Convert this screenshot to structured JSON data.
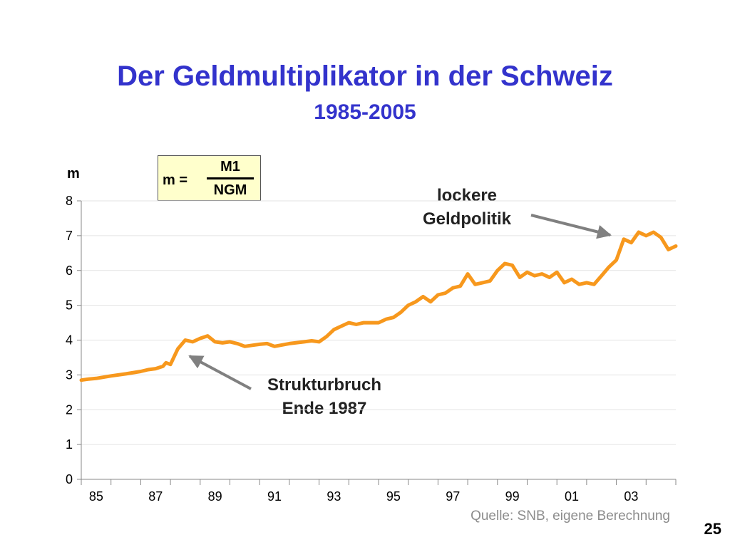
{
  "slide": {
    "title": "Der Geldmultiplikator in der Schweiz",
    "subtitle": "1985-2005",
    "formula": {
      "lhs": "m =",
      "numerator": "M1",
      "denominator": "NGM"
    },
    "annotations": [
      {
        "line1": "lockere",
        "line2": "Geldpolitik"
      },
      {
        "line1": "Strukturbruch",
        "line2": "Ende 1987"
      }
    ],
    "source": "Quelle: SNB, eigene Berechnung",
    "page_number": "25"
  },
  "colors": {
    "title": "#3333cc",
    "series": "#f7981d",
    "arrow": "#808080",
    "formula_bg": "#ffffcc"
  },
  "chart_data": {
    "type": "line",
    "ylabel": "m",
    "xlabel": "",
    "ylim": [
      0,
      8
    ],
    "yticks": [
      0,
      1,
      2,
      3,
      4,
      5,
      6,
      7,
      8
    ],
    "xlim": [
      1985,
      2005
    ],
    "xtick_labels": [
      "85",
      "87",
      "89",
      "91",
      "93",
      "95",
      "97",
      "99",
      "01",
      "03"
    ],
    "xtick_years": [
      1985,
      1987,
      1989,
      1991,
      1993,
      1995,
      1997,
      1999,
      2001,
      2003
    ],
    "grid": "horizontal",
    "series": [
      {
        "name": "",
        "x": [
          1985.0,
          1985.25,
          1985.5,
          1986.0,
          1986.5,
          1987.0,
          1987.25,
          1987.5,
          1987.75,
          1987.85,
          1988.0,
          1988.25,
          1988.5,
          1988.75,
          1989.0,
          1989.25,
          1989.5,
          1989.75,
          1990.0,
          1990.25,
          1990.5,
          1990.75,
          1991.0,
          1991.25,
          1991.5,
          1992.0,
          1992.5,
          1992.75,
          1993.0,
          1993.25,
          1993.5,
          1993.75,
          1994.0,
          1994.25,
          1994.5,
          1995.0,
          1995.25,
          1995.5,
          1995.75,
          1996.0,
          1996.25,
          1996.5,
          1996.75,
          1997.0,
          1997.25,
          1997.5,
          1997.75,
          1998.0,
          1998.25,
          1998.5,
          1998.75,
          1999.0,
          1999.25,
          1999.5,
          1999.75,
          2000.0,
          2000.25,
          2000.5,
          2000.75,
          2001.0,
          2001.25,
          2001.5,
          2001.75,
          2002.0,
          2002.25,
          2002.5,
          2002.75,
          2003.0,
          2003.25,
          2003.5,
          2003.75,
          2004.0,
          2004.25,
          2004.5,
          2004.75,
          2005.0
        ],
        "y": [
          2.85,
          2.88,
          2.9,
          2.97,
          3.03,
          3.1,
          3.15,
          3.18,
          3.25,
          3.35,
          3.3,
          3.75,
          4.0,
          3.95,
          4.05,
          4.12,
          3.95,
          3.92,
          3.95,
          3.9,
          3.82,
          3.85,
          3.88,
          3.9,
          3.82,
          3.9,
          3.95,
          3.98,
          3.95,
          4.1,
          4.3,
          4.4,
          4.5,
          4.45,
          4.5,
          4.5,
          4.6,
          4.65,
          4.8,
          5.0,
          5.1,
          5.25,
          5.1,
          5.3,
          5.35,
          5.5,
          5.55,
          5.9,
          5.6,
          5.65,
          5.7,
          6.0,
          6.2,
          6.15,
          5.8,
          5.95,
          5.85,
          5.9,
          5.8,
          5.95,
          5.65,
          5.75,
          5.6,
          5.65,
          5.6,
          5.85,
          6.1,
          6.3,
          6.9,
          6.8,
          7.1,
          7.0,
          7.1,
          6.95,
          6.6,
          6.7
        ]
      }
    ]
  }
}
